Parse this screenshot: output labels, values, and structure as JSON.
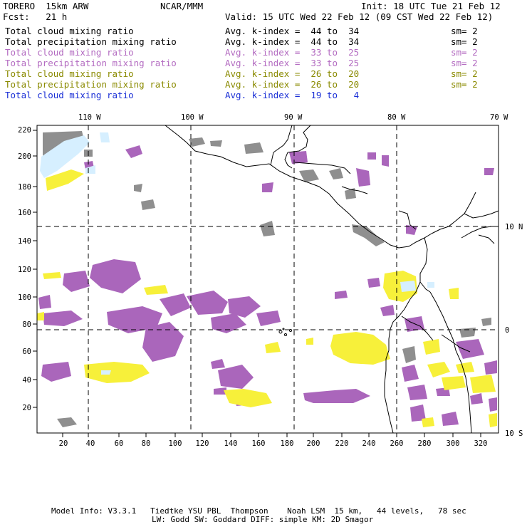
{
  "header": {
    "model": "TORERO  15km ARW",
    "org": "NCAR/MMM",
    "init": "Init: 18 UTC Tue 21 Feb 12",
    "fcst": "Fcst:   21 h",
    "valid": "Valid: 15 UTC Wed 22 Feb 12 (09 CST Wed 22 Feb 12)"
  },
  "fields": [
    {
      "name": "Total cloud mixing ratio",
      "kindex": "Avg. k-index =  44 to  34",
      "sm": "sm= 2",
      "color": "#000000"
    },
    {
      "name": "Total precipitation mixing ratio",
      "kindex": "Avg. k-index =  44 to  34",
      "sm": "sm= 2",
      "color": "#000000"
    },
    {
      "name": "Total cloud mixing ratio",
      "kindex": "Avg. k-index =  33 to  25",
      "sm": "sm= 2",
      "color": "#b36bc1"
    },
    {
      "name": "Total precipitation mixing ratio",
      "kindex": "Avg. k-index =  33 to  25",
      "sm": "sm= 2",
      "color": "#b36bc1"
    },
    {
      "name": "Total cloud mixing ratio",
      "kindex": "Avg. k-index =  26 to  20",
      "sm": "sm= 2",
      "color": "#8a8a00"
    },
    {
      "name": "Total precipitation mixing ratio",
      "kindex": "Avg. k-index =  26 to  20",
      "sm": "sm= 2",
      "color": "#8a8a00"
    },
    {
      "name": "Total cloud mixing ratio",
      "kindex": "Avg. k-index =  19 to   4",
      "sm": "",
      "color": "#1a2fd6"
    }
  ],
  "map": {
    "lon_labels": [
      "110 W",
      "100 W",
      "90 W",
      "80 W",
      "70 W"
    ],
    "lat_labels": [
      "10 N",
      "0",
      "10 S"
    ],
    "y_ticks": [
      "220",
      "200",
      "180",
      "160",
      "140",
      "120",
      "100",
      "80",
      "60",
      "40",
      "20"
    ],
    "x_ticks": [
      "20",
      "40",
      "60",
      "80",
      "100",
      "120",
      "140",
      "160",
      "180",
      "200",
      "220",
      "240",
      "260",
      "280",
      "300",
      "320"
    ],
    "colors": {
      "gray": "#8f8f8f",
      "purple": "#aa66bb",
      "yellow": "#f7f03a",
      "lightblue": "#d6efff",
      "coast": "#000000"
    }
  },
  "footer": {
    "line1": "Model Info: V3.3.1   Tiedtke YSU PBL  Thompson    Noah LSM  15 km,   44 levels,   78 sec",
    "line2": "LW: Godd SW: Goddard DIFF: simple KM: 2D Smagor"
  }
}
